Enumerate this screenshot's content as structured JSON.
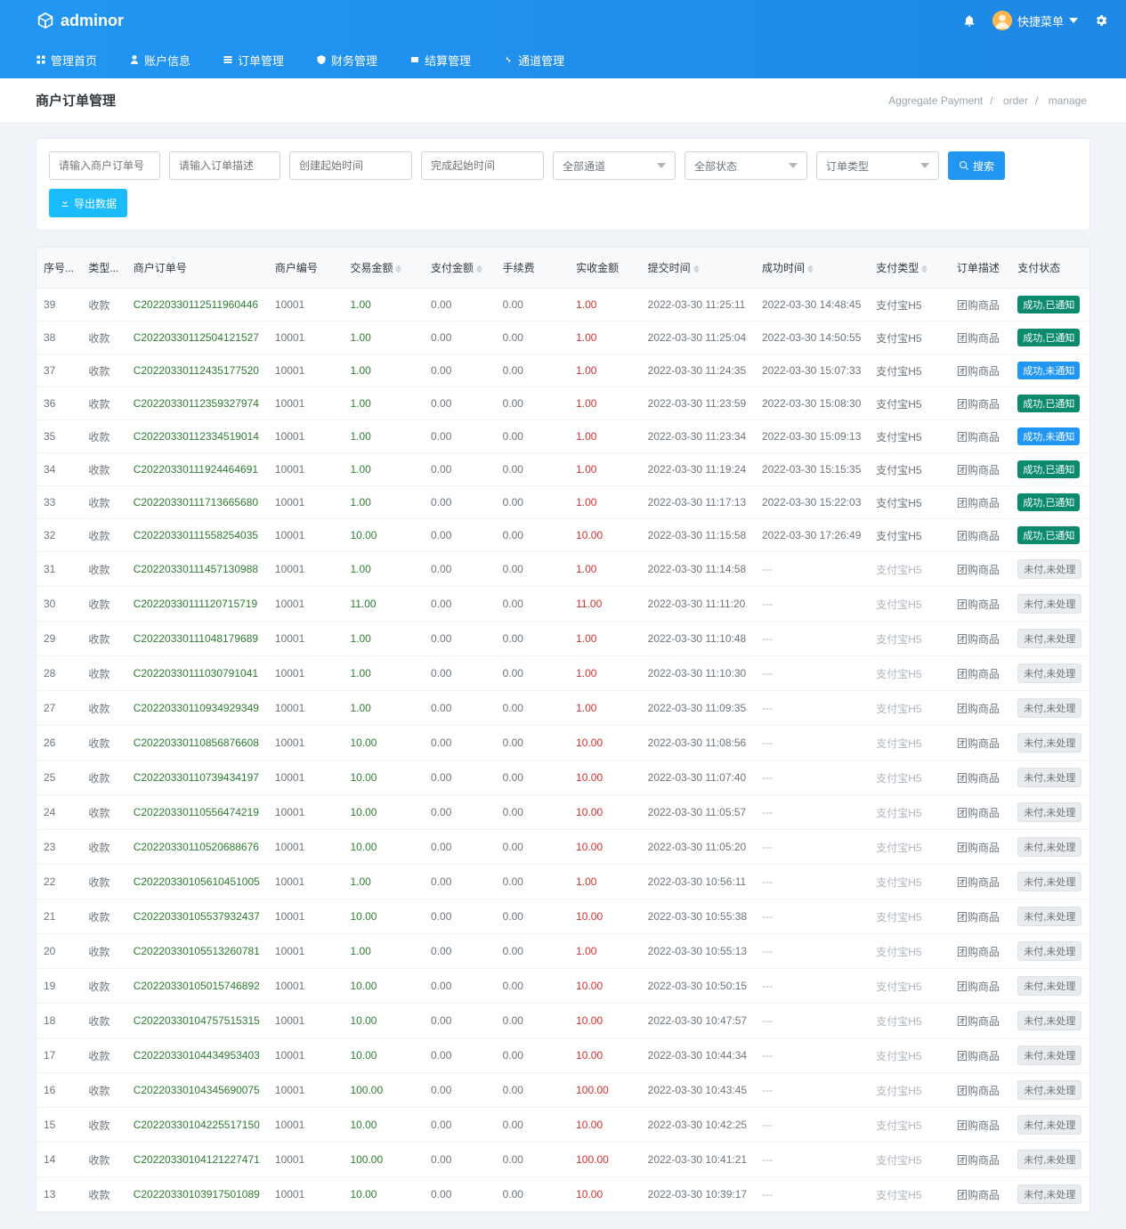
{
  "brand": "adminor",
  "user_menu_label": "快捷菜单",
  "nav": [
    {
      "label": "管理首页"
    },
    {
      "label": "账户信息"
    },
    {
      "label": "订单管理"
    },
    {
      "label": "财务管理"
    },
    {
      "label": "结算管理"
    },
    {
      "label": "通道管理"
    }
  ],
  "page_title": "商户订单管理",
  "breadcrumb": {
    "a": "Aggregate Payment",
    "b": "order",
    "c": "manage"
  },
  "filters": {
    "merchant_order_ph": "请输入商户订单号",
    "order_desc_ph": "请输入订单描述",
    "create_start_ph": "创建起始时间",
    "complete_start_ph": "完成起始时间",
    "channel_label": "全部通道",
    "status_label": "全部状态",
    "order_type_label": "订单类型",
    "btn_search": "搜索",
    "btn_export": "导出数据"
  },
  "columns": {
    "seq": "序号...",
    "type": "类型...",
    "order": "商户订单号",
    "mid": "商户编号",
    "txn": "交易金额",
    "paid": "支付金额",
    "fee": "手续费",
    "actual": "实收金额",
    "submit": "提交时间",
    "success": "成功时间",
    "ptype": "支付类型",
    "desc": "订单描述",
    "status": "支付状态"
  },
  "status_labels": {
    "sn": "成功,已通知",
    "su": "成功,未通知",
    "uu": "未付,未处理"
  },
  "common": {
    "type": "收款",
    "mid": "10001",
    "fee": "0.00",
    "ptype": "支付宝H5",
    "desc": "团购商品",
    "dash": "---"
  },
  "rows": [
    {
      "seq": "39",
      "order": "C20220330112511960446",
      "txn": "1.00",
      "paid": "0.00",
      "actual": "1.00",
      "sub": "2022-03-30 11:25:11",
      "suc": "2022-03-30 14:48:45",
      "st": "sn"
    },
    {
      "seq": "38",
      "order": "C20220330112504121527",
      "txn": "1.00",
      "paid": "0.00",
      "actual": "1.00",
      "sub": "2022-03-30 11:25:04",
      "suc": "2022-03-30 14:50:55",
      "st": "sn"
    },
    {
      "seq": "37",
      "order": "C20220330112435177520",
      "txn": "1.00",
      "paid": "0.00",
      "actual": "1.00",
      "sub": "2022-03-30 11:24:35",
      "suc": "2022-03-30 15:07:33",
      "st": "su"
    },
    {
      "seq": "36",
      "order": "C20220330112359327974",
      "txn": "1.00",
      "paid": "0.00",
      "actual": "1.00",
      "sub": "2022-03-30 11:23:59",
      "suc": "2022-03-30 15:08:30",
      "st": "sn"
    },
    {
      "seq": "35",
      "order": "C20220330112334519014",
      "txn": "1.00",
      "paid": "0.00",
      "actual": "1.00",
      "sub": "2022-03-30 11:23:34",
      "suc": "2022-03-30 15:09:13",
      "st": "su"
    },
    {
      "seq": "34",
      "order": "C20220330111924464691",
      "txn": "1.00",
      "paid": "0.00",
      "actual": "1.00",
      "sub": "2022-03-30 11:19:24",
      "suc": "2022-03-30 15:15:35",
      "st": "sn"
    },
    {
      "seq": "33",
      "order": "C20220330111713665680",
      "txn": "1.00",
      "paid": "0.00",
      "actual": "1.00",
      "sub": "2022-03-30 11:17:13",
      "suc": "2022-03-30 15:22:03",
      "st": "sn"
    },
    {
      "seq": "32",
      "order": "C20220330111558254035",
      "txn": "10.00",
      "paid": "0.00",
      "actual": "10.00",
      "sub": "2022-03-30 11:15:58",
      "suc": "2022-03-30 17:26:49",
      "st": "sn"
    },
    {
      "seq": "31",
      "order": "C20220330111457130988",
      "txn": "1.00",
      "paid": "0.00",
      "actual": "1.00",
      "sub": "2022-03-30 11:14:58",
      "suc": "",
      "st": "uu"
    },
    {
      "seq": "30",
      "order": "C20220330111120715719",
      "txn": "11.00",
      "paid": "0.00",
      "actual": "11.00",
      "sub": "2022-03-30 11:11:20",
      "suc": "",
      "st": "uu"
    },
    {
      "seq": "29",
      "order": "C20220330111048179689",
      "txn": "1.00",
      "paid": "0.00",
      "actual": "1.00",
      "sub": "2022-03-30 11:10:48",
      "suc": "",
      "st": "uu"
    },
    {
      "seq": "28",
      "order": "C20220330111030791041",
      "txn": "1.00",
      "paid": "0.00",
      "actual": "1.00",
      "sub": "2022-03-30 11:10:30",
      "suc": "",
      "st": "uu"
    },
    {
      "seq": "27",
      "order": "C20220330110934929349",
      "txn": "1.00",
      "paid": "0.00",
      "actual": "1.00",
      "sub": "2022-03-30 11:09:35",
      "suc": "",
      "st": "uu"
    },
    {
      "seq": "26",
      "order": "C20220330110856876608",
      "txn": "10.00",
      "paid": "0.00",
      "actual": "10.00",
      "sub": "2022-03-30 11:08:56",
      "suc": "",
      "st": "uu"
    },
    {
      "seq": "25",
      "order": "C20220330110739434197",
      "txn": "10.00",
      "paid": "0.00",
      "actual": "10.00",
      "sub": "2022-03-30 11:07:40",
      "suc": "",
      "st": "uu"
    },
    {
      "seq": "24",
      "order": "C20220330110556474219",
      "txn": "10.00",
      "paid": "0.00",
      "actual": "10.00",
      "sub": "2022-03-30 11:05:57",
      "suc": "",
      "st": "uu"
    },
    {
      "seq": "23",
      "order": "C20220330110520688676",
      "txn": "10.00",
      "paid": "0.00",
      "actual": "10.00",
      "sub": "2022-03-30 11:05:20",
      "suc": "",
      "st": "uu"
    },
    {
      "seq": "22",
      "order": "C20220330105610451005",
      "txn": "1.00",
      "paid": "0.00",
      "actual": "1.00",
      "sub": "2022-03-30 10:56:11",
      "suc": "",
      "st": "uu"
    },
    {
      "seq": "21",
      "order": "C20220330105537932437",
      "txn": "10.00",
      "paid": "0.00",
      "actual": "10.00",
      "sub": "2022-03-30 10:55:38",
      "suc": "",
      "st": "uu"
    },
    {
      "seq": "20",
      "order": "C20220330105513260781",
      "txn": "1.00",
      "paid": "0.00",
      "actual": "1.00",
      "sub": "2022-03-30 10:55:13",
      "suc": "",
      "st": "uu"
    },
    {
      "seq": "19",
      "order": "C20220330105015746892",
      "txn": "10.00",
      "paid": "0.00",
      "actual": "10.00",
      "sub": "2022-03-30 10:50:15",
      "suc": "",
      "st": "uu"
    },
    {
      "seq": "18",
      "order": "C20220330104757515315",
      "txn": "10.00",
      "paid": "0.00",
      "actual": "10.00",
      "sub": "2022-03-30 10:47:57",
      "suc": "",
      "st": "uu"
    },
    {
      "seq": "17",
      "order": "C20220330104434953403",
      "txn": "10.00",
      "paid": "0.00",
      "actual": "10.00",
      "sub": "2022-03-30 10:44:34",
      "suc": "",
      "st": "uu"
    },
    {
      "seq": "16",
      "order": "C20220330104345690075",
      "txn": "100.00",
      "paid": "0.00",
      "actual": "100.00",
      "sub": "2022-03-30 10:43:45",
      "suc": "",
      "st": "uu"
    },
    {
      "seq": "15",
      "order": "C20220330104225517150",
      "txn": "10.00",
      "paid": "0.00",
      "actual": "10.00",
      "sub": "2022-03-30 10:42:25",
      "suc": "",
      "st": "uu"
    },
    {
      "seq": "14",
      "order": "C20220330104121227471",
      "txn": "100.00",
      "paid": "0.00",
      "actual": "100.00",
      "sub": "2022-03-30 10:41:21",
      "suc": "",
      "st": "uu"
    },
    {
      "seq": "13",
      "order": "C20220330103917501089",
      "txn": "10.00",
      "paid": "0.00",
      "actual": "10.00",
      "sub": "2022-03-30 10:39:17",
      "suc": "",
      "st": "uu"
    }
  ]
}
